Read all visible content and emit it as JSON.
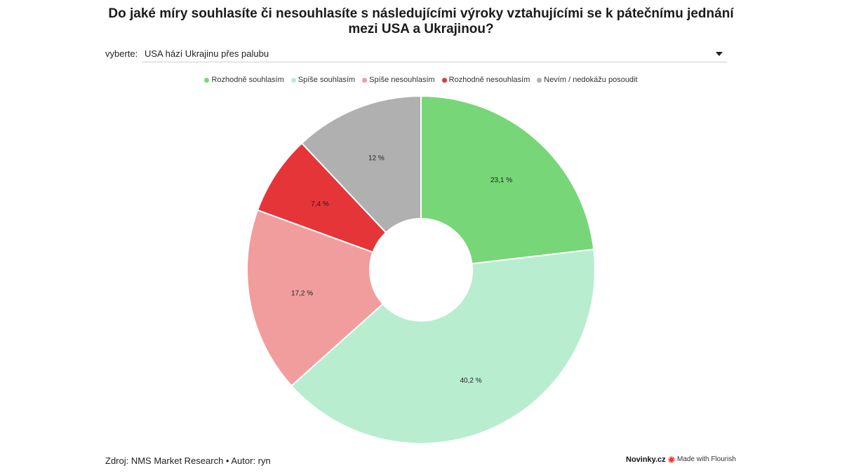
{
  "title": "Do jaké míry souhlasíte či nesouhlasíte s následujícími výroky vztahujícími se k pátečnímu jednání mezi USA a Ukrajinou?",
  "selector": {
    "label": "vyberte:",
    "value": "USA hází Ukrajinu přes palubu",
    "icon": "chevron-down-icon"
  },
  "chart_data": {
    "type": "pie",
    "donut": true,
    "legend_position": "top-center",
    "slices": [
      {
        "name": "Rozhodně souhlasím",
        "value": 23.1,
        "label": "23,1 %",
        "color": "#77d677"
      },
      {
        "name": "Spíše souhlasím",
        "value": 40.2,
        "label": "40,2 %",
        "color": "#b8edd0"
      },
      {
        "name": "Spíše nesouhlasím",
        "value": 17.2,
        "label": "17,2 %",
        "color": "#f19d9d"
      },
      {
        "name": "Rozhodně nesouhlasím",
        "value": 7.4,
        "label": "7,4 %",
        "color": "#e63538"
      },
      {
        "name": "Nevím / nedokážu posoudit",
        "value": 12,
        "label": "12 %",
        "color": "#b0b0b0"
      }
    ]
  },
  "footer": {
    "source": "Zdroj: NMS Market Research • Autor: ryn",
    "brand": "Novinky.cz",
    "flourish": "Made with Flourish"
  }
}
